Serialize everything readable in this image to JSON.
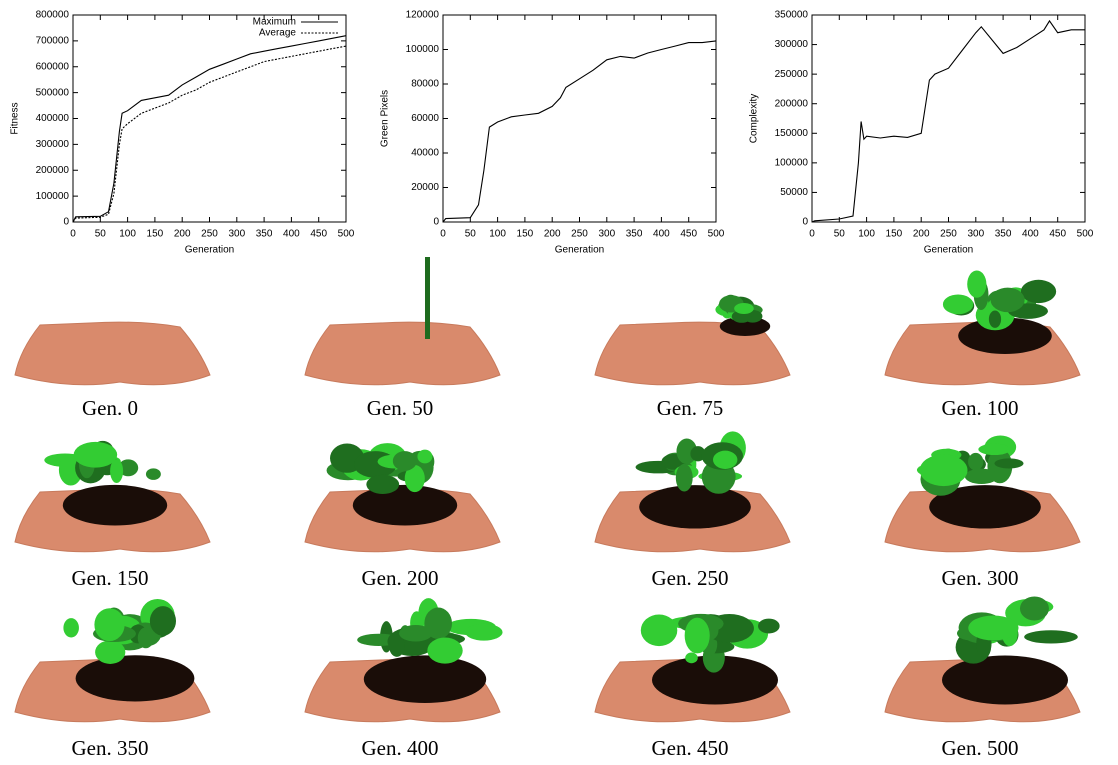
{
  "chart_data": [
    {
      "type": "line",
      "xlabel": "Generation",
      "ylabel": "Fitness",
      "x": [
        0,
        5,
        50,
        65,
        75,
        85,
        90,
        100,
        125,
        150,
        175,
        200,
        225,
        250,
        275,
        300,
        325,
        350,
        375,
        400,
        425,
        450,
        475,
        500
      ],
      "series": [
        {
          "name": "Maximum",
          "color": "#000000",
          "style": "solid",
          "values": [
            0,
            20000,
            22000,
            40000,
            150000,
            350000,
            420000,
            430000,
            470000,
            480000,
            490000,
            530000,
            560000,
            590000,
            610000,
            630000,
            650000,
            660000,
            670000,
            680000,
            690000,
            700000,
            710000,
            720000
          ]
        },
        {
          "name": "Average",
          "color": "#000000",
          "style": "dotted",
          "values": [
            0,
            15000,
            18000,
            30000,
            110000,
            300000,
            360000,
            380000,
            420000,
            440000,
            460000,
            490000,
            510000,
            540000,
            560000,
            580000,
            600000,
            620000,
            630000,
            640000,
            650000,
            660000,
            670000,
            680000
          ]
        }
      ],
      "legend": "upper right",
      "xlim": [
        0,
        500
      ],
      "xticks": [
        0,
        50,
        100,
        150,
        200,
        250,
        300,
        350,
        400,
        450,
        500
      ],
      "ylim": [
        0,
        800000
      ],
      "yticks": [
        0,
        100000,
        200000,
        300000,
        400000,
        500000,
        600000,
        700000,
        800000
      ]
    },
    {
      "type": "line",
      "xlabel": "Generation",
      "ylabel": "Green Pixels",
      "x": [
        0,
        5,
        50,
        65,
        75,
        85,
        100,
        125,
        150,
        175,
        200,
        215,
        225,
        250,
        275,
        300,
        325,
        350,
        375,
        400,
        425,
        450,
        475,
        500
      ],
      "values": [
        0,
        2000,
        2500,
        10000,
        30000,
        55000,
        58000,
        61000,
        62000,
        63000,
        67000,
        72000,
        78000,
        83000,
        88000,
        94000,
        96000,
        95000,
        98000,
        100000,
        102000,
        104000,
        104000,
        105000
      ],
      "color": "#000000",
      "style": "solid",
      "xlim": [
        0,
        500
      ],
      "xticks": [
        0,
        50,
        100,
        150,
        200,
        250,
        300,
        350,
        400,
        450,
        500
      ],
      "ylim": [
        0,
        120000
      ],
      "yticks": [
        0,
        20000,
        40000,
        60000,
        80000,
        100000,
        120000
      ]
    },
    {
      "type": "line",
      "xlabel": "Generation",
      "ylabel": "Complexity",
      "x": [
        0,
        5,
        50,
        75,
        85,
        90,
        95,
        100,
        125,
        150,
        175,
        200,
        215,
        225,
        250,
        275,
        300,
        310,
        350,
        375,
        400,
        425,
        435,
        450,
        475,
        500
      ],
      "values": [
        0,
        2000,
        5000,
        10000,
        100000,
        170000,
        140000,
        145000,
        142000,
        145000,
        143000,
        150000,
        240000,
        250000,
        260000,
        290000,
        320000,
        330000,
        285000,
        295000,
        310000,
        325000,
        340000,
        320000,
        325000,
        325000
      ],
      "color": "#000000",
      "style": "solid",
      "xlim": [
        0,
        500
      ],
      "xticks": [
        0,
        50,
        100,
        150,
        200,
        250,
        300,
        350,
        400,
        450,
        500
      ],
      "ylim": [
        0,
        350000
      ],
      "yticks": [
        0,
        50000,
        100000,
        150000,
        200000,
        250000,
        300000,
        350000
      ]
    }
  ],
  "panels": [
    {
      "caption": "Gen. 0"
    },
    {
      "caption": "Gen. 50"
    },
    {
      "caption": "Gen. 75"
    },
    {
      "caption": "Gen. 100"
    },
    {
      "caption": "Gen. 150"
    },
    {
      "caption": "Gen. 200"
    },
    {
      "caption": "Gen. 250"
    },
    {
      "caption": "Gen. 300"
    },
    {
      "caption": "Gen. 350"
    },
    {
      "caption": "Gen. 400"
    },
    {
      "caption": "Gen. 450"
    },
    {
      "caption": "Gen. 500"
    }
  ]
}
